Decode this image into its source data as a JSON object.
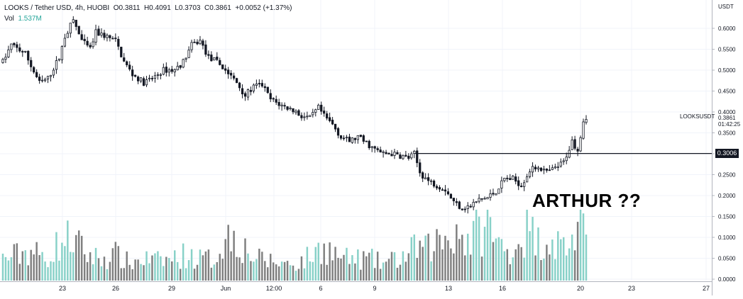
{
  "legend": {
    "symbol": "LOOKS / Tether USD, 4h, HUOBI",
    "open": "O0.3811",
    "high": "H0.4091",
    "low": "L0.3703",
    "close": "C0.3861",
    "change": "+0.0052 (+1.37%)",
    "volume_label": "Vol",
    "volume_value": "1.537M"
  },
  "annotation": "ARTHUR ??",
  "price_panel": {
    "currency": "USDT",
    "symbol_tag": "LOOKSUSDT",
    "last_price": "0.3861",
    "countdown": "01:42:25",
    "line_price_label": "0.3006"
  },
  "colors": {
    "up_candle": "#131722",
    "down_candle": "#131722",
    "volume_up": "#88d1c8",
    "volume_down": "#7f7f7f",
    "grid": "#f0f3fa",
    "text": "#131722",
    "horizontal_line": "#131722",
    "tag_background": "#131722"
  },
  "chart_data": {
    "type": "candlestick",
    "interval": "4h",
    "y_axis": {
      "ticks": [
        "0.6000",
        "0.5500",
        "0.5000",
        "0.4500",
        "0.4000",
        "0.3500",
        "0.3000",
        "0.2500",
        "0.2000",
        "0.1500",
        "0.1000",
        "0.0500",
        "0.0000"
      ],
      "ylim": [
        0.0,
        0.63
      ],
      "position": "right"
    },
    "x_axis": {
      "ticks": [
        "23",
        "26",
        "29",
        "Jun",
        "12:00",
        "6",
        "9",
        "13",
        "16",
        "20",
        "23",
        "27"
      ]
    },
    "horizontal_line": 0.3006,
    "price_waypoints": [
      [
        0,
        0.52
      ],
      [
        3,
        0.56
      ],
      [
        8,
        0.54
      ],
      [
        10,
        0.51
      ],
      [
        13,
        0.47
      ],
      [
        16,
        0.48
      ],
      [
        20,
        0.53
      ],
      [
        22,
        0.58
      ],
      [
        25,
        0.62
      ],
      [
        28,
        0.57
      ],
      [
        31,
        0.55
      ],
      [
        33,
        0.59
      ],
      [
        37,
        0.58
      ],
      [
        40,
        0.57
      ],
      [
        43,
        0.52
      ],
      [
        46,
        0.49
      ],
      [
        50,
        0.47
      ],
      [
        53,
        0.48
      ],
      [
        57,
        0.5
      ],
      [
        61,
        0.5
      ],
      [
        64,
        0.52
      ],
      [
        67,
        0.56
      ],
      [
        70,
        0.57
      ],
      [
        73,
        0.53
      ],
      [
        76,
        0.52
      ],
      [
        79,
        0.5
      ],
      [
        83,
        0.47
      ],
      [
        86,
        0.44
      ],
      [
        89,
        0.46
      ],
      [
        92,
        0.465
      ],
      [
        95,
        0.43
      ],
      [
        99,
        0.415
      ],
      [
        103,
        0.405
      ],
      [
        106,
        0.39
      ],
      [
        109,
        0.385
      ],
      [
        112,
        0.41
      ],
      [
        114,
        0.39
      ],
      [
        117,
        0.37
      ],
      [
        120,
        0.34
      ],
      [
        123,
        0.33
      ],
      [
        126,
        0.34
      ],
      [
        129,
        0.325
      ],
      [
        132,
        0.31
      ],
      [
        135,
        0.3
      ],
      [
        138,
        0.3
      ],
      [
        141,
        0.295
      ],
      [
        144,
        0.29
      ],
      [
        146,
        0.3
      ],
      [
        148,
        0.255
      ],
      [
        151,
        0.235
      ],
      [
        154,
        0.225
      ],
      [
        157,
        0.215
      ],
      [
        160,
        0.185
      ],
      [
        163,
        0.17
      ],
      [
        166,
        0.175
      ],
      [
        169,
        0.19
      ],
      [
        172,
        0.195
      ],
      [
        175,
        0.21
      ],
      [
        178,
        0.24
      ],
      [
        181,
        0.24
      ],
      [
        184,
        0.225
      ],
      [
        187,
        0.26
      ],
      [
        190,
        0.27
      ],
      [
        193,
        0.255
      ],
      [
        196,
        0.265
      ],
      [
        199,
        0.28
      ],
      [
        202,
        0.33
      ],
      [
        204,
        0.31
      ],
      [
        206,
        0.38
      ],
      [
        207,
        0.386
      ]
    ],
    "volume_waypoints": [
      [
        0,
        0.05
      ],
      [
        5,
        0.06
      ],
      [
        10,
        0.07
      ],
      [
        15,
        0.05
      ],
      [
        20,
        0.085
      ],
      [
        24,
        0.1
      ],
      [
        27,
        0.08
      ],
      [
        30,
        0.06
      ],
      [
        35,
        0.05
      ],
      [
        40,
        0.06
      ],
      [
        45,
        0.04
      ],
      [
        50,
        0.05
      ],
      [
        55,
        0.045
      ],
      [
        60,
        0.05
      ],
      [
        65,
        0.06
      ],
      [
        70,
        0.05
      ],
      [
        75,
        0.05
      ],
      [
        78,
        0.09
      ],
      [
        82,
        0.11
      ],
      [
        85,
        0.08
      ],
      [
        90,
        0.05
      ],
      [
        95,
        0.045
      ],
      [
        100,
        0.04
      ],
      [
        105,
        0.04
      ],
      [
        110,
        0.06
      ],
      [
        114,
        0.08
      ],
      [
        118,
        0.06
      ],
      [
        122,
        0.05
      ],
      [
        126,
        0.05
      ],
      [
        130,
        0.05
      ],
      [
        135,
        0.04
      ],
      [
        140,
        0.05
      ],
      [
        144,
        0.06
      ],
      [
        147,
        0.08
      ],
      [
        150,
        0.07
      ],
      [
        154,
        0.09
      ],
      [
        158,
        0.1
      ],
      [
        161,
        0.12
      ],
      [
        165,
        0.09
      ],
      [
        168,
        0.11
      ],
      [
        172,
        0.13
      ],
      [
        175,
        0.09
      ],
      [
        178,
        0.07
      ],
      [
        182,
        0.08
      ],
      [
        186,
        0.12
      ],
      [
        190,
        0.09
      ],
      [
        194,
        0.1
      ],
      [
        198,
        0.08
      ],
      [
        202,
        0.09
      ],
      [
        205,
        0.14
      ],
      [
        207,
        0.07
      ]
    ],
    "volume_max": 0.16,
    "candle_count": 208
  }
}
